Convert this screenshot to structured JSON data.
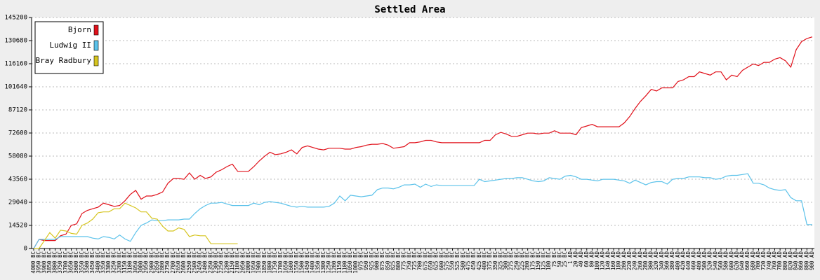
{
  "chart_data": {
    "type": "line",
    "title": "Settled Area",
    "categories": [
      "4000 BC",
      "3950 BC",
      "3900 BC",
      "3850 BC",
      "3800 BC",
      "3750 BC",
      "3700 BC",
      "3650 BC",
      "3600 BC",
      "3550 BC",
      "3500 BC",
      "3450 BC",
      "3400 BC",
      "3350 BC",
      "3300 BC",
      "3250 BC",
      "3200 BC",
      "3150 BC",
      "3100 BC",
      "3050 BC",
      "3000 BC",
      "2950 BC",
      "2900 BC",
      "2850 BC",
      "2800 BC",
      "2750 BC",
      "2700 BC",
      "2650 BC",
      "2600 BC",
      "2550 BC",
      "2500 BC",
      "2450 BC",
      "2400 BC",
      "2350 BC",
      "2300 BC",
      "2250 BC",
      "2200 BC",
      "2150 BC",
      "2100 BC",
      "2050 BC",
      "2000 BC",
      "1950 BC",
      "1900 BC",
      "1850 BC",
      "1800 BC",
      "1750 BC",
      "1700 BC",
      "1650 BC",
      "1600 BC",
      "1550 BC",
      "1500 BC",
      "1450 BC",
      "1400 BC",
      "1350 BC",
      "1300 BC",
      "1250 BC",
      "1200 BC",
      "1150 BC",
      "1100 BC",
      "1050 BC",
      "1000 BC",
      "975 BC",
      "950 BC",
      "925 BC",
      "900 BC",
      "875 BC",
      "850 BC",
      "825 BC",
      "800 BC",
      "775 BC",
      "750 BC",
      "725 BC",
      "700 BC",
      "675 BC",
      "650 BC",
      "625 BC",
      "600 BC",
      "575 BC",
      "550 BC",
      "525 BC",
      "500 BC",
      "475 BC",
      "450 BC",
      "425 BC",
      "400 BC",
      "375 BC",
      "350 BC",
      "325 BC",
      "300 BC",
      "275 BC",
      "250 BC",
      "225 BC",
      "200 BC",
      "175 BC",
      "150 BC",
      "125 BC",
      "100 BC",
      "75 BC",
      "50 BC",
      "25 BC",
      "1 AD",
      "20 AD",
      "40 AD",
      "60 AD",
      "80 AD",
      "100 AD",
      "120 AD",
      "140 AD",
      "160 AD",
      "180 AD",
      "200 AD",
      "220 AD",
      "240 AD",
      "260 AD",
      "280 AD",
      "300 AD",
      "320 AD",
      "340 AD",
      "360 AD",
      "380 AD",
      "400 AD",
      "420 AD",
      "440 AD",
      "460 AD",
      "480 AD",
      "500 AD",
      "520 AD",
      "540 AD",
      "560 AD",
      "580 AD",
      "600 AD",
      "620 AD",
      "640 AD",
      "660 AD",
      "680 AD",
      "700 AD",
      "720 AD",
      "740 AD",
      "760 AD",
      "780 AD",
      "800 AD",
      "820 AD",
      "840 AD",
      "860 AD",
      "880 AD",
      "900 AD"
    ],
    "series": [
      {
        "name": "Bjorn",
        "color": "#e0101a",
        "values": [
          0,
          5700,
          5000,
          5000,
          5000,
          8000,
          9000,
          14500,
          15500,
          22000,
          24000,
          25000,
          26000,
          28500,
          27500,
          26500,
          27000,
          30000,
          34000,
          36500,
          31000,
          33000,
          33000,
          34000,
          35500,
          41000,
          44000,
          44000,
          43500,
          47500,
          43500,
          46000,
          44000,
          45000,
          48000,
          49500,
          51500,
          53000,
          48500,
          48500,
          48500,
          51500,
          55000,
          58000,
          60500,
          59000,
          59500,
          60500,
          62000,
          59500,
          63500,
          64500,
          63500,
          62500,
          62000,
          63000,
          63000,
          63000,
          62500,
          62500,
          63500,
          64000,
          65000,
          65500,
          65500,
          66000,
          65000,
          63000,
          63500,
          64000,
          66500,
          66500,
          67000,
          68000,
          68000,
          67000,
          66500,
          66500,
          66500,
          66500,
          66500,
          66500,
          66500,
          66500,
          68000,
          68000,
          71500,
          73000,
          72000,
          70500,
          70500,
          71500,
          72500,
          72500,
          72000,
          72500,
          72500,
          74000,
          72500,
          72500,
          72500,
          71500,
          76000,
          77000,
          78000,
          76500,
          76500,
          76500,
          76500,
          76500,
          79000,
          83000,
          88000,
          92500,
          96000,
          100000,
          99000,
          101000,
          101000,
          101000,
          105000,
          106000,
          108000,
          108000,
          111000,
          110000,
          109000,
          111000,
          111000,
          106000,
          109000,
          108000,
          112000,
          114000,
          116000,
          115000,
          117000,
          117000,
          119000,
          120000,
          118000,
          114000,
          125000,
          130000,
          132000,
          133000
        ]
      },
      {
        "name": "Ludwig II",
        "color": "#5bc2ea",
        "values": [
          0,
          5700,
          5700,
          5700,
          5700,
          7500,
          7500,
          7500,
          7500,
          7500,
          7500,
          6500,
          6000,
          7500,
          7000,
          6000,
          8500,
          6000,
          4500,
          10000,
          14500,
          16000,
          18000,
          17500,
          17500,
          18000,
          18000,
          18000,
          18500,
          18500,
          22000,
          25000,
          27000,
          28500,
          28500,
          29000,
          28000,
          27000,
          27000,
          27000,
          27000,
          28500,
          27500,
          29000,
          29500,
          29000,
          28500,
          27500,
          26500,
          26000,
          26500,
          26000,
          26000,
          26000,
          26000,
          26500,
          28500,
          33000,
          30000,
          33500,
          33000,
          32500,
          33000,
          33500,
          37000,
          38000,
          38000,
          37500,
          38500,
          40000,
          40000,
          40500,
          38500,
          40500,
          39000,
          40000,
          39500,
          39500,
          39500,
          39500,
          39500,
          39500,
          39500,
          43500,
          42000,
          42500,
          43000,
          43500,
          44000,
          44000,
          44500,
          44500,
          43500,
          42500,
          42000,
          42500,
          44500,
          44000,
          43500,
          45500,
          46000,
          45000,
          43500,
          43500,
          43000,
          42500,
          43500,
          43500,
          43500,
          43000,
          42500,
          41000,
          43000,
          41500,
          40000,
          41500,
          42000,
          42000,
          40500,
          43500,
          44000,
          44000,
          45000,
          45000,
          45000,
          44500,
          44500,
          43500,
          44000,
          45500,
          46000,
          46000,
          46500,
          47000,
          41000,
          41000,
          40000,
          38000,
          37000,
          36500,
          37000,
          32000,
          30000,
          30000,
          15000,
          15000
        ]
      },
      {
        "name": "Bray Radbury",
        "color": "#d6c520",
        "values": [
          0,
          0,
          5000,
          10000,
          6500,
          11500,
          11000,
          9500,
          9000,
          14500,
          16000,
          18500,
          22500,
          23000,
          23000,
          25000,
          25000,
          28500,
          27000,
          25500,
          23000,
          23000,
          19000,
          18500,
          14000,
          11000,
          11000,
          13000,
          12000,
          7500,
          8500,
          8000,
          8000,
          3000,
          3000,
          3000,
          3000,
          3000,
          3000,
          null,
          null,
          null,
          null,
          null,
          null,
          null,
          null,
          null,
          null,
          null,
          null,
          null,
          null,
          null,
          null,
          null,
          null,
          null,
          null,
          null,
          null,
          null,
          null,
          null,
          null,
          null,
          null,
          null,
          null,
          null,
          null,
          null,
          null,
          null,
          null,
          null,
          null,
          null,
          null,
          null,
          null,
          null,
          null,
          null,
          null,
          null,
          null,
          null,
          null,
          null,
          null,
          null,
          null,
          null,
          null,
          null,
          null,
          null,
          null,
          null,
          null,
          null,
          null,
          null,
          null,
          null,
          null,
          null,
          null,
          null,
          null,
          null,
          null,
          null,
          null,
          null,
          null,
          null,
          null,
          null,
          null,
          null,
          null,
          null,
          null,
          null,
          null,
          null,
          null,
          null,
          null,
          null,
          null,
          null,
          null,
          null,
          null,
          null,
          null,
          null,
          null,
          null,
          null,
          null,
          null,
          null
        ]
      }
    ],
    "ylim": [
      0,
      145200
    ],
    "yticks": [
      0,
      14520,
      29040,
      43560,
      58080,
      72600,
      87120,
      101640,
      116160,
      130680,
      145200
    ],
    "grid": true,
    "legend": "upper left"
  }
}
